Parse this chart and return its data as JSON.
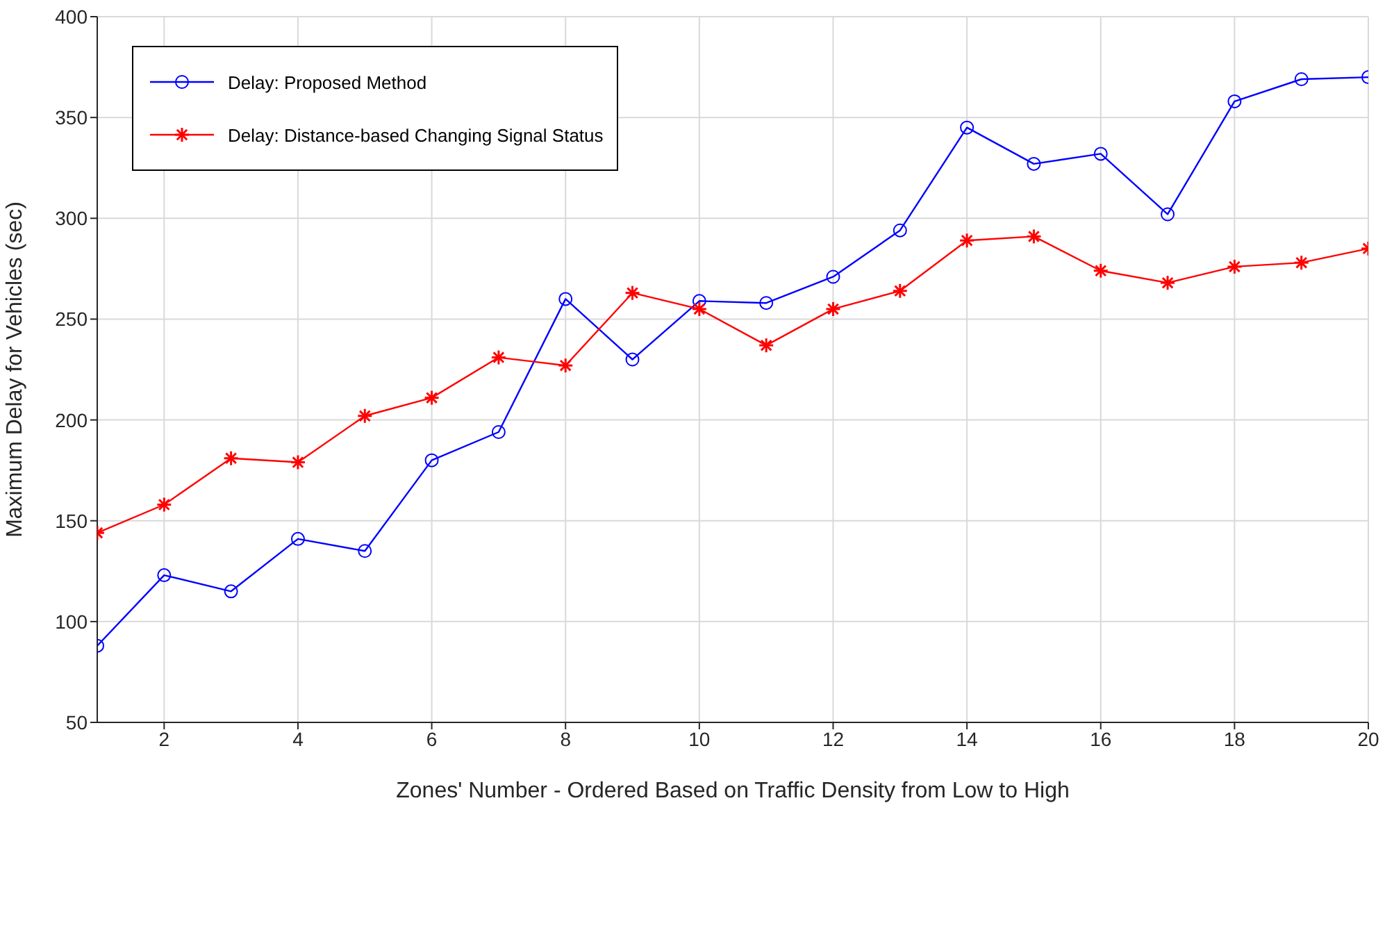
{
  "chart_data": {
    "type": "line",
    "xlabel": "Zones'  Number - Ordered Based on Traffic Density from Low to High",
    "ylabel": "Maximum Delay for Vehicles (sec)",
    "x": [
      1,
      2,
      3,
      4,
      5,
      6,
      7,
      8,
      9,
      10,
      11,
      12,
      13,
      14,
      15,
      16,
      17,
      18,
      19,
      20
    ],
    "series": [
      {
        "name": "Delay: Proposed Method",
        "color": "#0000ff",
        "marker": "circle",
        "values": [
          88,
          123,
          115,
          141,
          135,
          180,
          194,
          260,
          230,
          259,
          258,
          271,
          294,
          345,
          327,
          332,
          302,
          358,
          369,
          370
        ]
      },
      {
        "name": "Delay: Distance-based Changing Signal Status",
        "color": "#ff0000",
        "marker": "cross",
        "values": [
          144,
          158,
          181,
          179,
          202,
          211,
          231,
          227,
          263,
          255,
          237,
          255,
          264,
          289,
          291,
          274,
          268,
          276,
          278,
          285
        ]
      }
    ],
    "xlim": [
      1,
      20
    ],
    "xticks": [
      2,
      4,
      6,
      8,
      10,
      12,
      14,
      16,
      18,
      20
    ],
    "ylim": [
      50,
      400
    ],
    "yticks": [
      50,
      100,
      150,
      200,
      250,
      300,
      350,
      400
    ],
    "grid": true,
    "legend": "top left",
    "line_style": "solid"
  }
}
